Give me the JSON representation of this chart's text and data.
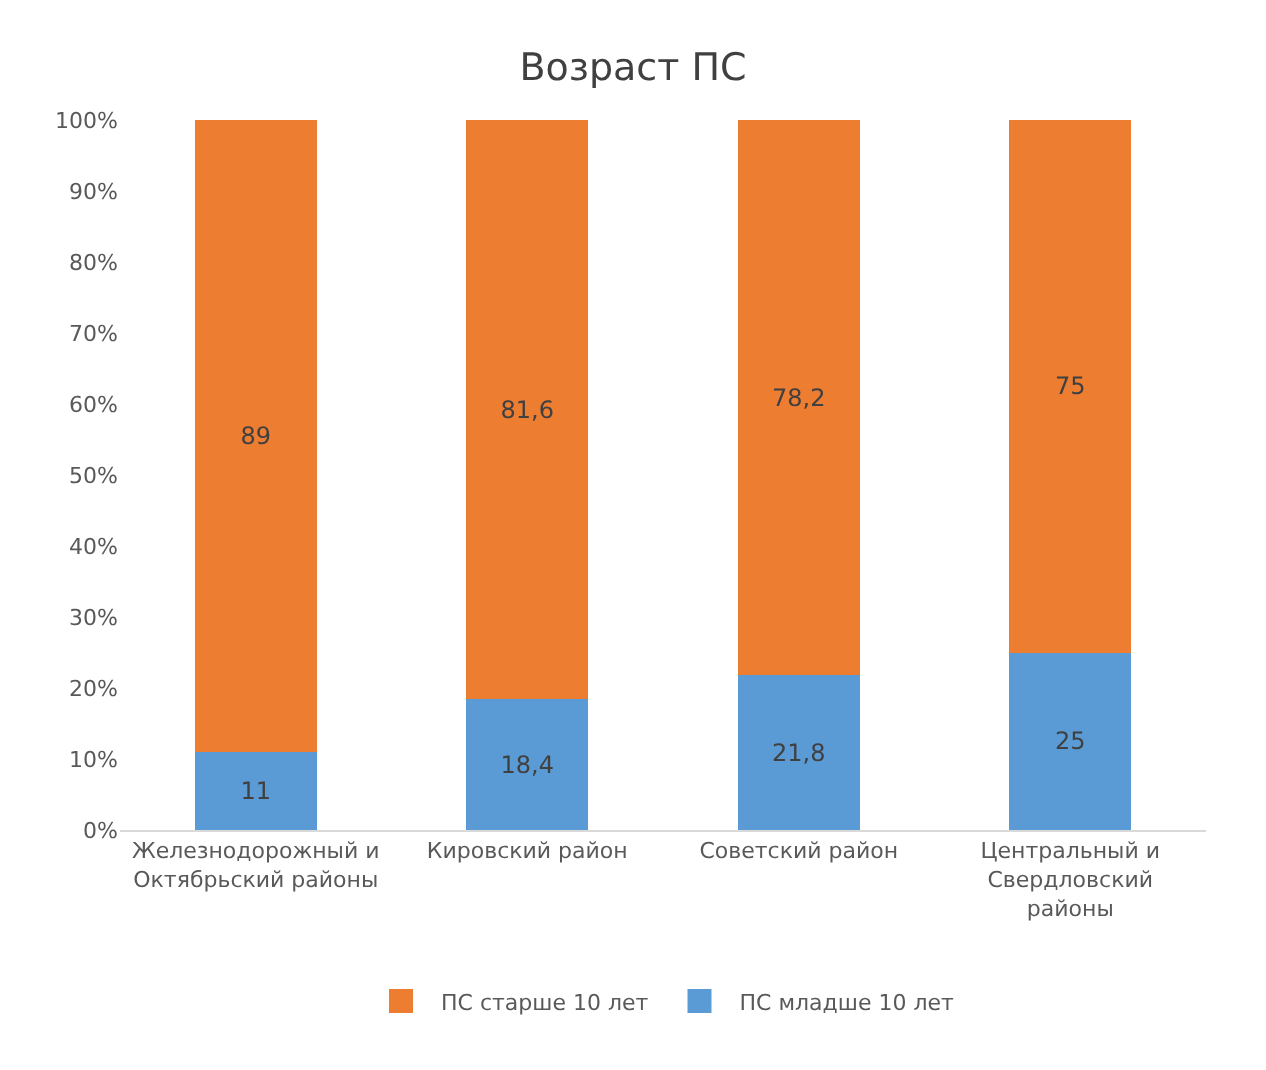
{
  "chart_data": {
    "type": "bar",
    "title": "Возраст ПС",
    "stacked": true,
    "categories": [
      "Железнодорожный и Октябрьский районы",
      "Кировский район",
      "Советский район",
      "Центральный и Свердловский районы"
    ],
    "series": [
      {
        "name": "ПС младше 10 лет",
        "color": "#5b9bd5",
        "values": [
          11,
          18.4,
          21.8,
          25
        ],
        "value_labels": [
          "11",
          "18,4",
          "21,8",
          "25"
        ]
      },
      {
        "name": "ПС старше 10 лет",
        "color": "#ed7d31",
        "values": [
          89,
          81.6,
          78.2,
          75
        ],
        "value_labels": [
          "89",
          "81,6",
          "78,2",
          "75"
        ]
      }
    ],
    "ylim": [
      0,
      100
    ],
    "yticks": [
      {
        "value": 0,
        "label": "0%"
      },
      {
        "value": 10,
        "label": "10%"
      },
      {
        "value": 20,
        "label": "20%"
      },
      {
        "value": 30,
        "label": "30%"
      },
      {
        "value": 40,
        "label": "40%"
      },
      {
        "value": 50,
        "label": "50%"
      },
      {
        "value": 60,
        "label": "60%"
      },
      {
        "value": 70,
        "label": "70%"
      },
      {
        "value": 80,
        "label": "80%"
      },
      {
        "value": 90,
        "label": "90%"
      },
      {
        "value": 100,
        "label": "100%"
      }
    ],
    "grid": false,
    "legend": "bottom"
  }
}
